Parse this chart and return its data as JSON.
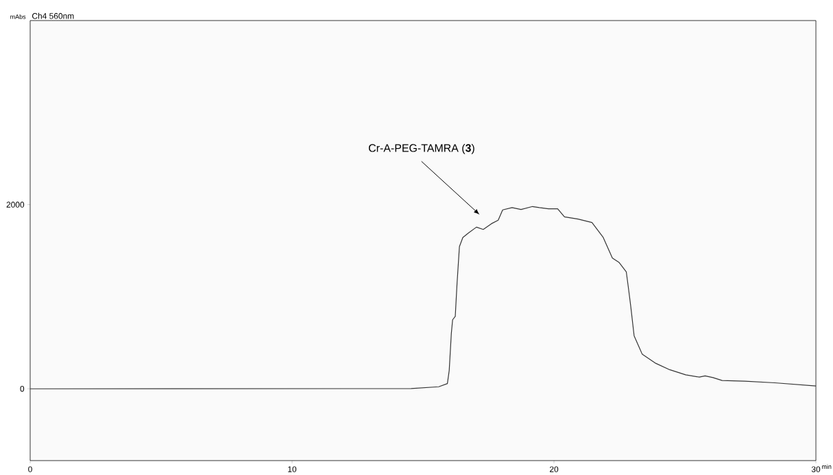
{
  "chart_data": {
    "type": "line",
    "title": "Ch4 560nm",
    "ylabel": "mAbs",
    "xlabel": "min",
    "color": "#333333",
    "x": [
      0,
      14.55,
      15.6,
      15.93,
      16.0,
      16.08,
      16.13,
      16.23,
      16.3,
      16.39,
      16.52,
      16.74,
      17.04,
      17.3,
      17.61,
      17.87,
      18.04,
      18.4,
      18.74,
      19.18,
      19.44,
      19.79,
      20.14,
      20.4,
      20.92,
      21.45,
      21.88,
      22.23,
      22.49,
      22.76,
      22.84,
      22.93,
      23.06,
      23.37,
      23.89,
      24.42,
      25.03,
      25.55,
      25.77,
      26.07,
      26.42,
      27.29,
      28.43,
      30
    ],
    "values": [
      0,
      2,
      22,
      57,
      200,
      600,
      750,
      786,
      1150,
      1545,
      1644,
      1694,
      1756,
      1731,
      1793,
      1831,
      1943,
      1968,
      1948,
      1980,
      1968,
      1955,
      1955,
      1868,
      1843,
      1806,
      1644,
      1420,
      1371,
      1271,
      1100,
      898,
      575,
      375,
      276,
      207,
      152,
      127,
      140,
      122,
      90,
      82,
      65,
      30
    ],
    "xlim": [
      0,
      30
    ],
    "ylim": [
      -780,
      4000
    ],
    "xticks": [
      0,
      10,
      20,
      30
    ],
    "yticks": [
      0,
      2000
    ],
    "annotations": [
      "Cr-A-PEG-TAMRA (**3**)"
    ]
  }
}
